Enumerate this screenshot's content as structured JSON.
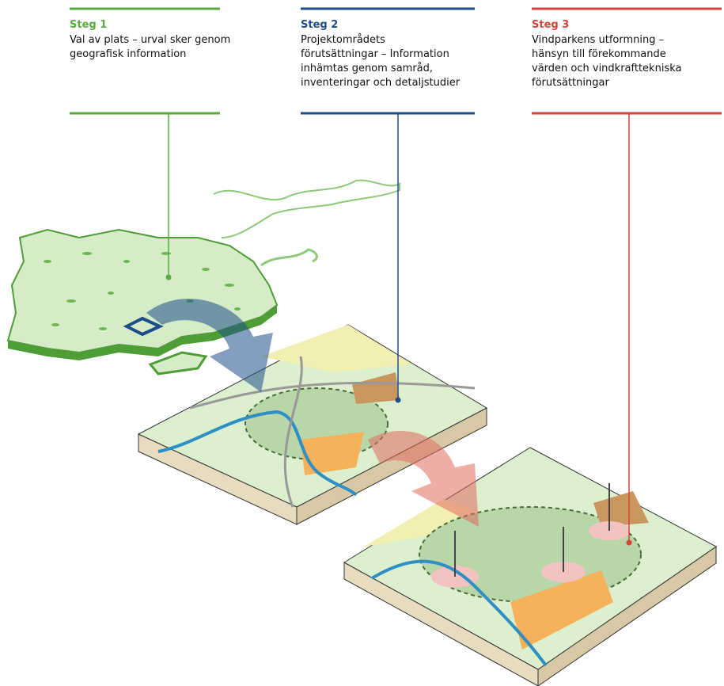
{
  "steps": [
    {
      "title": "Steg 1",
      "lines": [
        "Val av plats – urval sker genom",
        "geografisk information"
      ]
    },
    {
      "title": "Steg 2",
      "lines": [
        "Projektområdets",
        "förutsättningar – Information",
        "inhämtas genom samråd,",
        "inventeringar och detaljstudier"
      ]
    },
    {
      "title": "Steg 3",
      "lines": [
        "Vindparkens utformning –",
        "hänsyn till förekommande",
        "värden och vindkrafttekniska",
        "förutsättningar"
      ]
    }
  ]
}
